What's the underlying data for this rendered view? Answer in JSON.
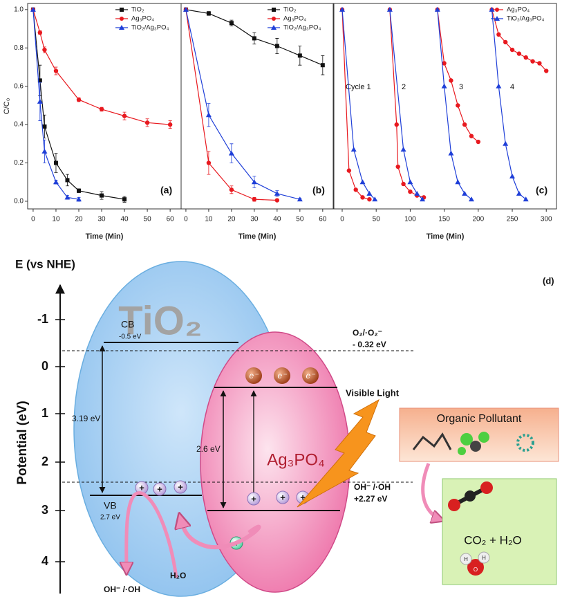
{
  "chart_data": [
    {
      "type": "line",
      "annotation": "(a)",
      "xlabel": "Time (Min)",
      "ylabel": "C/C₀",
      "legend": "upper right",
      "xlim": [
        -2.4,
        64.8
      ],
      "ylim": [
        -0.04,
        1.032
      ],
      "xticks": [
        0,
        10,
        20,
        30,
        40,
        50,
        60
      ],
      "yticks": [
        {
          "value": 0,
          "label": "0.0"
        },
        0.2,
        0.4,
        0.6,
        0.8,
        {
          "value": 1,
          "label": "1.0"
        }
      ],
      "series": [
        {
          "name": "TiO₂",
          "color": "#111111",
          "marker": "square",
          "x": [
            0,
            3,
            5,
            10,
            15,
            20,
            30,
            40
          ],
          "values": [
            1.0,
            0.63,
            0.39,
            0.2,
            0.11,
            0.055,
            0.03,
            0.01
          ],
          "errors": [
            0,
            0.08,
            0.06,
            0.05,
            0.03,
            0.01,
            0.02,
            0.015
          ]
        },
        {
          "name": "Ag₃PO₄",
          "color": "#e8191f",
          "marker": "circle",
          "x": [
            0,
            3,
            5,
            10,
            20,
            30,
            40,
            50,
            60
          ],
          "values": [
            1.0,
            0.88,
            0.79,
            0.68,
            0.53,
            0.48,
            0.445,
            0.41,
            0.4
          ],
          "errors": [
            0,
            0.01,
            0.015,
            0.02,
            0.01,
            0.01,
            0.02,
            0.02,
            0.02
          ]
        },
        {
          "name": "TiO₂/Ag₃PO₄",
          "color": "#1f3fd8",
          "marker": "triangle",
          "x": [
            0,
            3,
            5,
            10,
            15,
            20
          ],
          "values": [
            1.0,
            0.52,
            0.26,
            0.1,
            0.02,
            0.01
          ],
          "errors": [
            0,
            0.1,
            0.06,
            0.01,
            0.01,
            0.01
          ]
        }
      ]
    },
    {
      "type": "line",
      "annotation": "(b)",
      "xlabel": "Time (Min)",
      "legend": "upper right",
      "xlim": [
        -2.1,
        64.6
      ],
      "ylim": [
        -0.04,
        1.032
      ],
      "xticks": [
        0,
        10,
        20,
        30,
        40,
        50,
        60
      ],
      "series": [
        {
          "name": "TiO₂",
          "color": "#111111",
          "marker": "square",
          "x": [
            0,
            10,
            20,
            30,
            40,
            50,
            60
          ],
          "values": [
            1.0,
            0.98,
            0.93,
            0.85,
            0.81,
            0.76,
            0.71
          ],
          "errors": [
            0,
            0.01,
            0.015,
            0.03,
            0.04,
            0.05,
            0.05
          ]
        },
        {
          "name": "Ag₃PO₄",
          "color": "#e8191f",
          "marker": "circle",
          "x": [
            0,
            10,
            20,
            30,
            40
          ],
          "values": [
            1.0,
            0.2,
            0.06,
            0.01,
            0.005
          ],
          "errors": [
            0,
            0.06,
            0.02,
            0.01,
            0.005
          ]
        },
        {
          "name": "TiO₂/Ag₃PO₄",
          "color": "#1f3fd8",
          "marker": "triangle",
          "x": [
            0,
            10,
            20,
            30,
            40,
            50
          ],
          "values": [
            1.0,
            0.45,
            0.25,
            0.1,
            0.04,
            0.01
          ],
          "errors": [
            0,
            0.06,
            0.05,
            0.03,
            0.015,
            0.005
          ]
        }
      ]
    },
    {
      "type": "line",
      "annotation": "(c)",
      "xlabel": "Time (Min)",
      "legend": "upper right",
      "cycle_labels": [
        "Cycle 1",
        "2",
        "3",
        "4"
      ],
      "xlim": [
        -12.2,
        315
      ],
      "ylim": [
        -0.04,
        1.032
      ],
      "xticks": [
        0,
        50,
        100,
        150,
        200,
        250,
        300
      ],
      "series": [
        {
          "name": "Ag₃PO₄",
          "color": "#e8191f",
          "marker": "circle",
          "x": [
            0,
            10,
            20,
            30,
            40,
            null,
            70,
            80,
            82,
            90,
            100,
            110,
            120,
            null,
            140,
            150,
            160,
            170,
            180,
            190,
            200,
            null,
            220,
            230,
            240,
            250,
            260,
            270,
            280,
            290,
            300
          ],
          "values": [
            1.0,
            0.16,
            0.06,
            0.02,
            0.01,
            null,
            1.0,
            0.4,
            0.18,
            0.09,
            0.05,
            0.03,
            0.02,
            null,
            1.0,
            0.72,
            0.63,
            0.5,
            0.4,
            0.34,
            0.31,
            null,
            1.0,
            0.87,
            0.83,
            0.79,
            0.77,
            0.75,
            0.73,
            0.72,
            0.68
          ]
        },
        {
          "name": "TiO₂/Ag₃PO₄",
          "color": "#1f3fd8",
          "marker": "triangle",
          "x": [
            0,
            17,
            30,
            40,
            48,
            null,
            70,
            90,
            100,
            110,
            118,
            null,
            140,
            150,
            160,
            170,
            180,
            190,
            null,
            220,
            230,
            240,
            250,
            260,
            270
          ],
          "values": [
            1.0,
            0.27,
            0.1,
            0.04,
            0.01,
            null,
            1.0,
            0.27,
            0.1,
            0.04,
            0.01,
            null,
            1.0,
            0.6,
            0.25,
            0.1,
            0.04,
            0.01,
            null,
            1.0,
            0.6,
            0.3,
            0.13,
            0.04,
            0.01
          ]
        }
      ]
    }
  ],
  "diagram": {
    "title": "E (vs NHE)",
    "label": "(d)",
    "axis_label": "Potential (eV)",
    "potential_ticks": [
      "-1",
      "0",
      "1",
      "2",
      "3",
      "4"
    ],
    "tio2": "TiO₂",
    "tio2_cb": "CB",
    "tio2_cb_value": "-0.5 eV",
    "tio2_gap": "3.19 eV",
    "tio2_vb": "VB",
    "tio2_vb_value": "2.7 eV",
    "ag3po4": "Ag₃PO₄",
    "ag3po4_gap": "2.6 eV",
    "electron": "e⁻",
    "hole": "+",
    "o2_couple": "O₂/·O₂⁻",
    "o2_potential": "- 0.32 eV",
    "oh_couple": "OH⁻ /·OH",
    "oh_potential": "+2.27 eV",
    "light": "Visible Light",
    "pollutant": "Organic Pollutant",
    "products": "CO₂ + H₂O",
    "bottom_radical": "OH⁻ /·OH",
    "water": "H₂O",
    "atom_o": "O",
    "atom_h": "H"
  }
}
